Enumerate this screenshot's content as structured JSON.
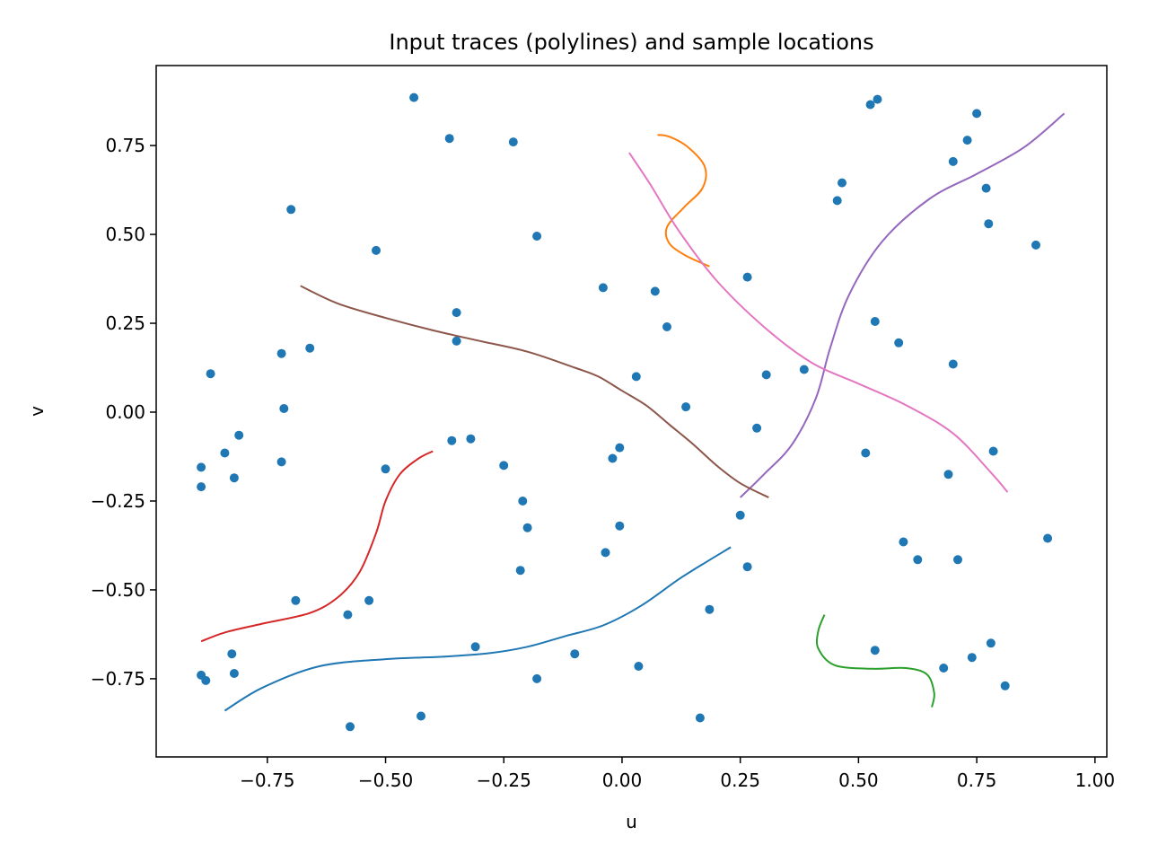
{
  "chart_data": {
    "type": "scatter",
    "title": "Input traces (polylines) and sample locations",
    "xlabel": "u",
    "ylabel": "v",
    "xlim": [
      -0.985,
      1.025
    ],
    "ylim": [
      -0.97,
      0.975
    ],
    "xticks": [
      {
        "value": -0.75,
        "label": "−0.75"
      },
      {
        "value": -0.5,
        "label": "−0.50"
      },
      {
        "value": -0.25,
        "label": "−0.25"
      },
      {
        "value": 0.0,
        "label": "0.00"
      },
      {
        "value": 0.25,
        "label": "0.25"
      },
      {
        "value": 0.5,
        "label": "0.50"
      },
      {
        "value": 0.75,
        "label": "0.75"
      },
      {
        "value": 1.0,
        "label": "1.00"
      }
    ],
    "yticks": [
      {
        "value": -0.75,
        "label": "−0.75"
      },
      {
        "value": -0.5,
        "label": "−0.50"
      },
      {
        "value": -0.25,
        "label": "−0.25"
      },
      {
        "value": 0.0,
        "label": "0.00"
      },
      {
        "value": 0.25,
        "label": "0.25"
      },
      {
        "value": 0.5,
        "label": "0.50"
      },
      {
        "value": 0.75,
        "label": "0.75"
      }
    ],
    "grid": false,
    "points": {
      "color": "#1f77b4",
      "values": [
        [
          -0.44,
          0.885
        ],
        [
          -0.365,
          0.77
        ],
        [
          -0.23,
          0.76
        ],
        [
          -0.7,
          0.57
        ],
        [
          -0.52,
          0.455
        ],
        [
          -0.18,
          0.495
        ],
        [
          -0.35,
          0.28
        ],
        [
          -0.35,
          0.2
        ],
        [
          -0.72,
          0.165
        ],
        [
          -0.66,
          0.18
        ],
        [
          -0.87,
          0.108
        ],
        [
          -0.715,
          0.01
        ],
        [
          -0.81,
          -0.065
        ],
        [
          -0.84,
          -0.115
        ],
        [
          -0.89,
          -0.155
        ],
        [
          -0.82,
          -0.185
        ],
        [
          -0.89,
          -0.21
        ],
        [
          -0.72,
          -0.14
        ],
        [
          -0.5,
          -0.16
        ],
        [
          -0.36,
          -0.08
        ],
        [
          -0.32,
          -0.075
        ],
        [
          -0.25,
          -0.15
        ],
        [
          -0.21,
          -0.25
        ],
        [
          -0.2,
          -0.325
        ],
        [
          -0.215,
          -0.445
        ],
        [
          -0.69,
          -0.53
        ],
        [
          -0.535,
          -0.53
        ],
        [
          -0.58,
          -0.57
        ],
        [
          -0.825,
          -0.68
        ],
        [
          -0.82,
          -0.735
        ],
        [
          -0.89,
          -0.74
        ],
        [
          -0.88,
          -0.755
        ],
        [
          -0.31,
          -0.66
        ],
        [
          -0.18,
          -0.75
        ],
        [
          -0.575,
          -0.885
        ],
        [
          -0.425,
          -0.855
        ],
        [
          -0.04,
          0.35
        ],
        [
          0.07,
          0.34
        ],
        [
          0.095,
          0.24
        ],
        [
          0.03,
          0.1
        ],
        [
          0.135,
          0.015
        ],
        [
          -0.005,
          -0.1
        ],
        [
          -0.02,
          -0.13
        ],
        [
          -0.005,
          -0.32
        ],
        [
          -0.035,
          -0.395
        ],
        [
          -0.1,
          -0.68
        ],
        [
          0.035,
          -0.715
        ],
        [
          0.185,
          -0.555
        ],
        [
          0.165,
          -0.86
        ],
        [
          0.265,
          0.38
        ],
        [
          0.305,
          0.105
        ],
        [
          0.285,
          -0.045
        ],
        [
          0.25,
          -0.29
        ],
        [
          0.265,
          -0.435
        ],
        [
          0.385,
          0.12
        ],
        [
          0.455,
          0.595
        ],
        [
          0.465,
          0.645
        ],
        [
          0.525,
          0.865
        ],
        [
          0.54,
          0.88
        ],
        [
          0.535,
          0.255
        ],
        [
          0.585,
          0.195
        ],
        [
          0.515,
          -0.115
        ],
        [
          0.595,
          -0.365
        ],
        [
          0.625,
          -0.415
        ],
        [
          0.535,
          -0.67
        ],
        [
          0.7,
          0.135
        ],
        [
          0.69,
          -0.175
        ],
        [
          0.71,
          -0.415
        ],
        [
          0.68,
          -0.72
        ],
        [
          0.74,
          -0.69
        ],
        [
          0.78,
          -0.65
        ],
        [
          0.81,
          -0.77
        ],
        [
          0.875,
          0.47
        ],
        [
          0.9,
          -0.355
        ],
        [
          0.75,
          0.84
        ],
        [
          0.73,
          0.765
        ],
        [
          0.7,
          0.705
        ],
        [
          0.77,
          0.63
        ],
        [
          0.775,
          0.53
        ],
        [
          0.785,
          -0.11
        ]
      ]
    },
    "series": [
      {
        "color": "#1f77b4",
        "x": [
          -0.84,
          -0.76,
          -0.64,
          -0.5,
          -0.38,
          -0.28,
          -0.2,
          -0.12,
          -0.04,
          0.04,
          0.12,
          0.18,
          0.23
        ],
        "y": [
          -0.84,
          -0.775,
          -0.715,
          -0.695,
          -0.688,
          -0.678,
          -0.66,
          -0.63,
          -0.6,
          -0.545,
          -0.47,
          -0.42,
          -0.38
        ]
      },
      {
        "color": "#ff7f0e",
        "x": [
          0.075,
          0.1,
          0.14,
          0.175,
          0.17,
          0.13,
          0.095,
          0.1,
          0.135,
          0.185
        ],
        "y": [
          0.78,
          0.775,
          0.745,
          0.69,
          0.63,
          0.575,
          0.52,
          0.475,
          0.44,
          0.41
        ]
      },
      {
        "color": "#2ca02c",
        "x": [
          0.428,
          0.415,
          0.415,
          0.45,
          0.53,
          0.6,
          0.645,
          0.66,
          0.655
        ],
        "y": [
          -0.57,
          -0.615,
          -0.665,
          -0.712,
          -0.722,
          -0.72,
          -0.738,
          -0.79,
          -0.83
        ]
      },
      {
        "color": "#d62728",
        "x": [
          -0.89,
          -0.84,
          -0.76,
          -0.66,
          -0.6,
          -0.555,
          -0.52,
          -0.5,
          -0.47,
          -0.43,
          -0.4
        ],
        "y": [
          -0.645,
          -0.62,
          -0.595,
          -0.565,
          -0.52,
          -0.45,
          -0.34,
          -0.25,
          -0.175,
          -0.13,
          -0.11
        ]
      },
      {
        "color": "#9467bd",
        "x": [
          0.25,
          0.3,
          0.36,
          0.41,
          0.44,
          0.48,
          0.55,
          0.65,
          0.75,
          0.85,
          0.935
        ],
        "y": [
          -0.24,
          -0.175,
          -0.09,
          0.04,
          0.18,
          0.33,
          0.48,
          0.6,
          0.67,
          0.745,
          0.84
        ]
      },
      {
        "color": "#8c564b",
        "x": [
          -0.68,
          -0.6,
          -0.5,
          -0.4,
          -0.3,
          -0.2,
          -0.1,
          -0.05,
          0.0,
          0.05,
          0.1,
          0.15,
          0.2,
          0.25,
          0.31
        ],
        "y": [
          0.355,
          0.305,
          0.265,
          0.23,
          0.2,
          0.17,
          0.125,
          0.1,
          0.06,
          0.02,
          -0.035,
          -0.09,
          -0.15,
          -0.2,
          -0.24
        ]
      },
      {
        "color": "#e377c2",
        "x": [
          0.015,
          0.06,
          0.12,
          0.2,
          0.3,
          0.4,
          0.5,
          0.6,
          0.7,
          0.78,
          0.815
        ],
        "y": [
          0.73,
          0.64,
          0.51,
          0.37,
          0.24,
          0.14,
          0.08,
          0.02,
          -0.06,
          -0.17,
          -0.225
        ]
      }
    ]
  }
}
